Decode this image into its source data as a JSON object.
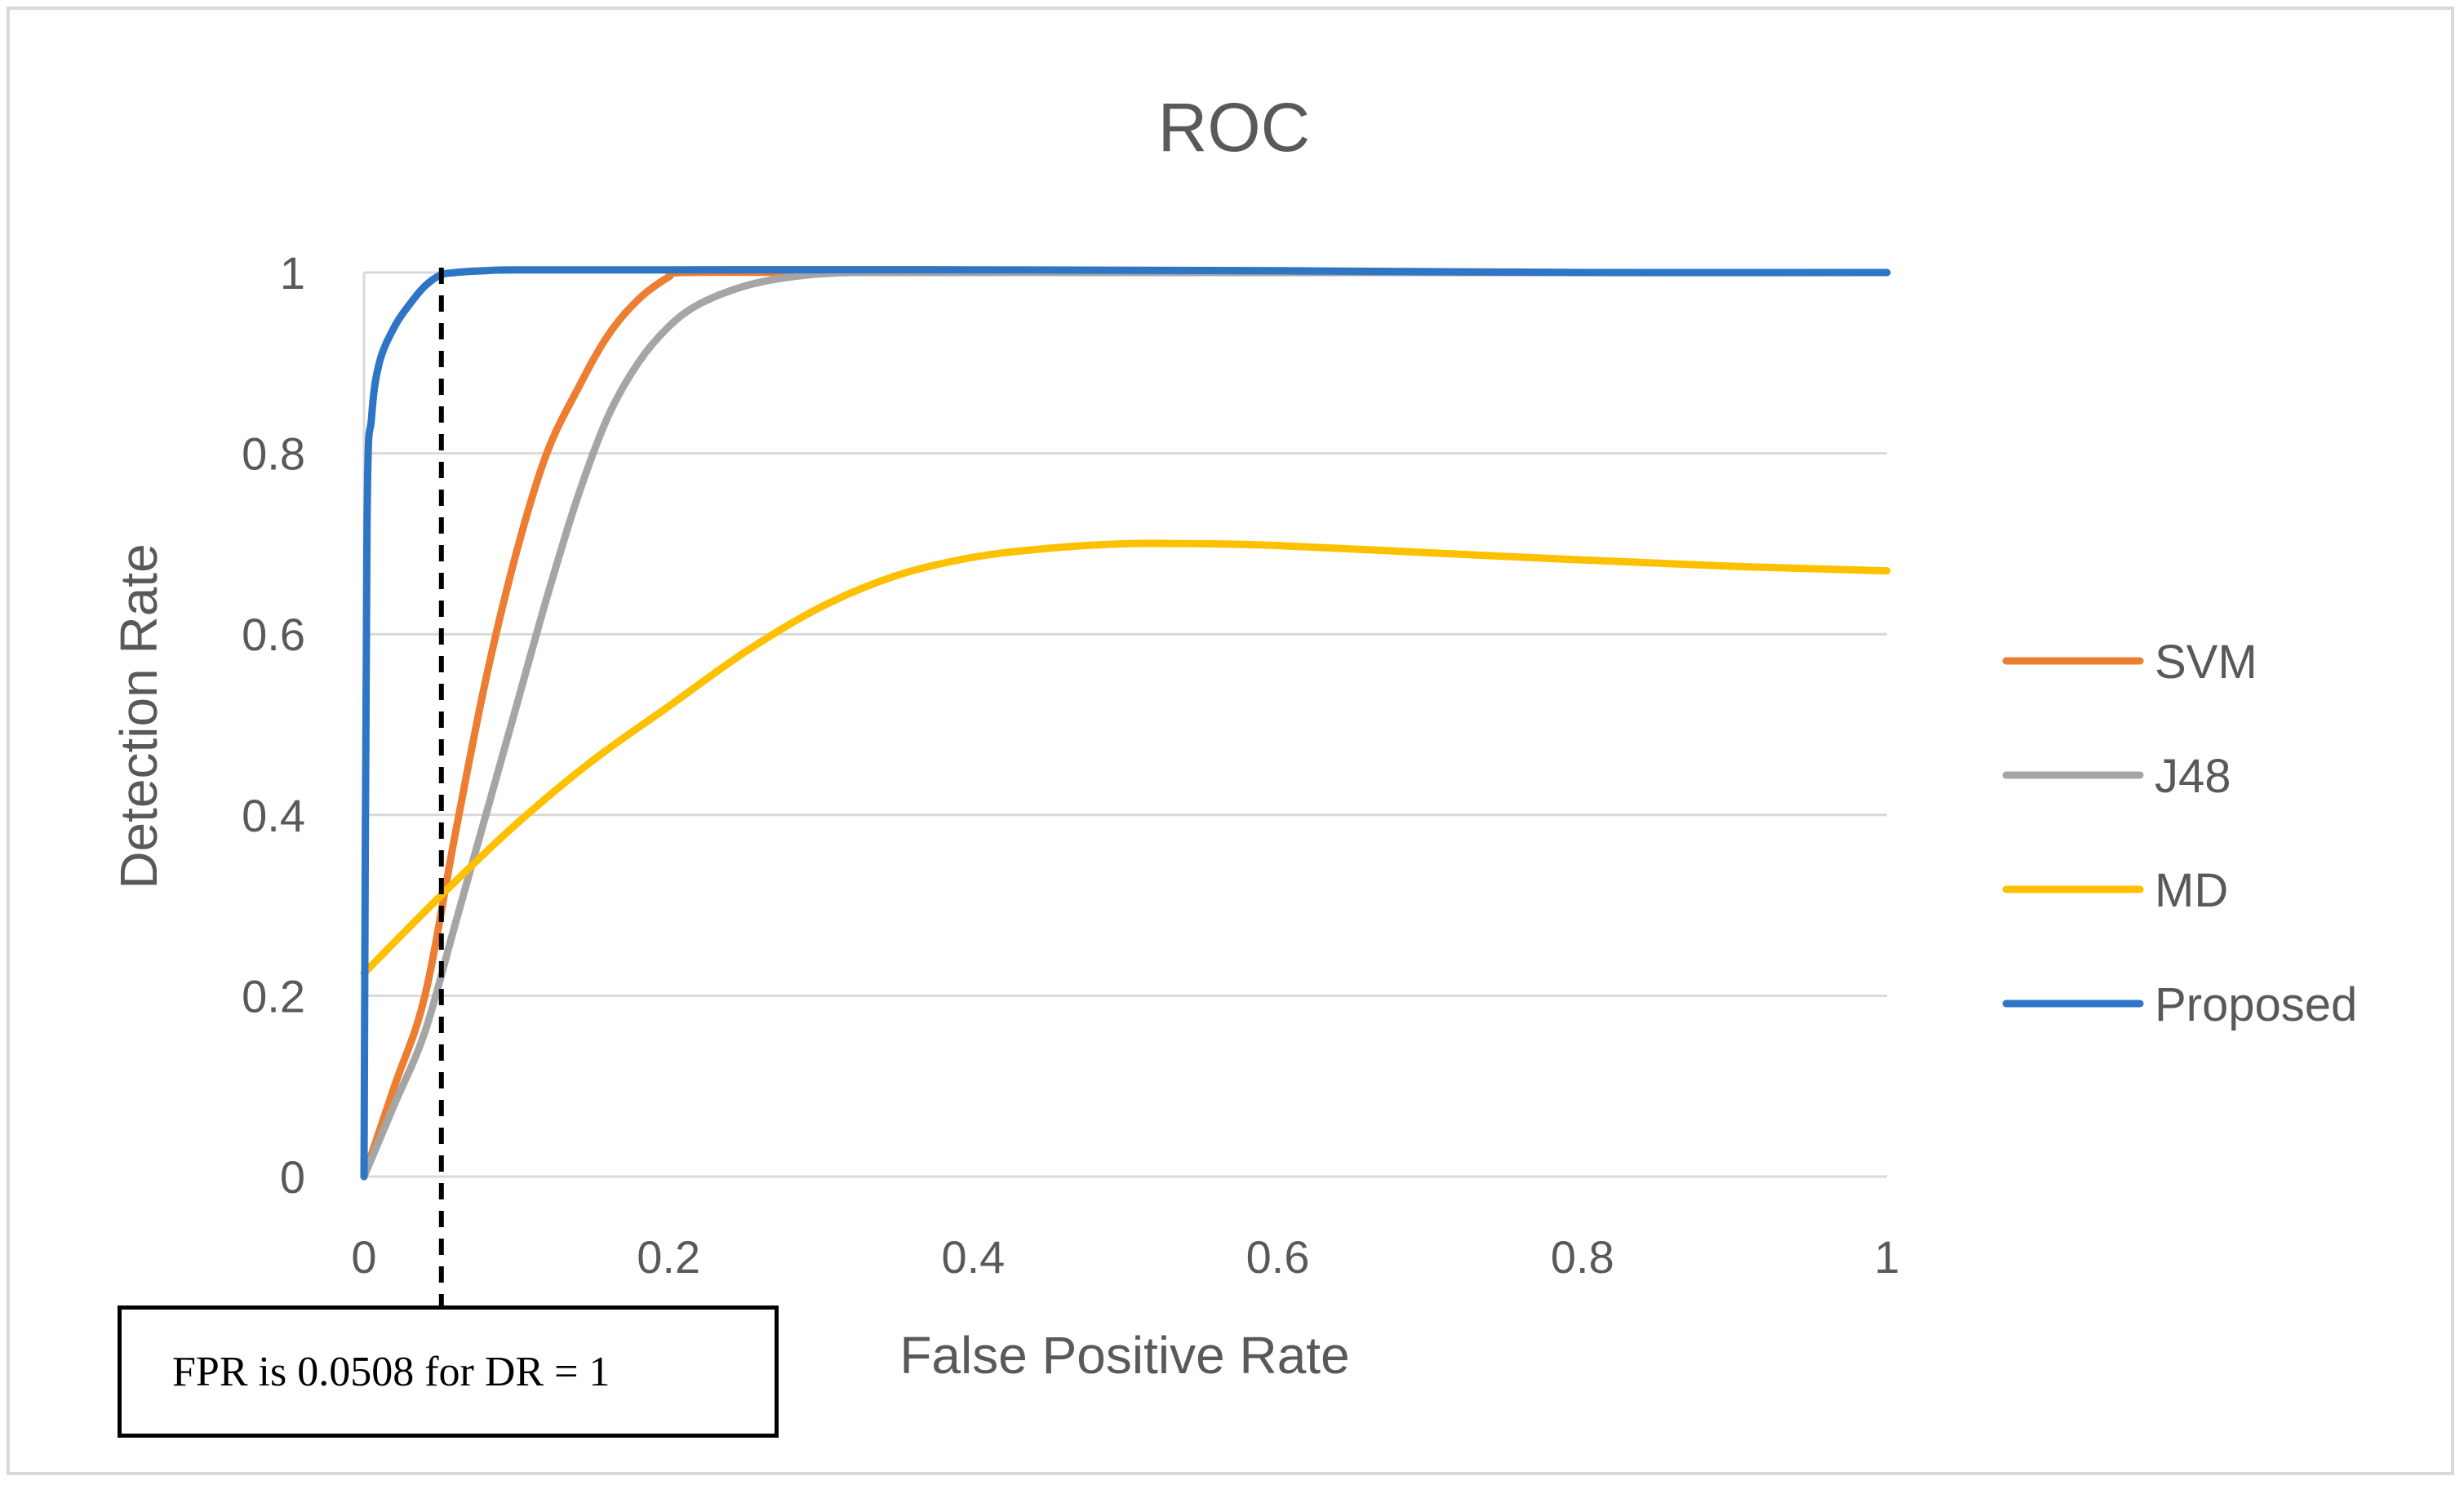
{
  "chart_data": {
    "type": "line",
    "title": "ROC",
    "xlabel": "False Positive Rate",
    "ylabel": "Detection Rate",
    "xlim": [
      0,
      1
    ],
    "ylim": [
      0,
      1
    ],
    "x_ticks": [
      "0",
      "0.2",
      "0.4",
      "0.6",
      "0.8",
      "1"
    ],
    "y_ticks": [
      "0",
      "0.2",
      "0.4",
      "0.6",
      "0.8",
      "1"
    ],
    "grid": "horizontal",
    "legend_position": "right",
    "series": [
      {
        "name": "SVM",
        "color": "#ED7D31",
        "x": [
          0,
          0.02,
          0.04,
          0.06,
          0.08,
          0.1,
          0.12,
          0.14,
          0.16,
          0.18,
          0.2,
          0.21,
          0.3,
          0.4,
          0.5,
          0.6,
          0.7,
          0.8,
          0.9,
          1.0
        ],
        "y": [
          0,
          0.1,
          0.2,
          0.38,
          0.55,
          0.69,
          0.8,
          0.87,
          0.93,
          0.97,
          0.995,
          1.0,
          1.0,
          1.0,
          1.0,
          1.0,
          1.0,
          1.0,
          1.0,
          1.0
        ]
      },
      {
        "name": "J48",
        "color": "#A5A5A5",
        "x": [
          0,
          0.02,
          0.04,
          0.06,
          0.08,
          0.1,
          0.12,
          0.14,
          0.16,
          0.18,
          0.2,
          0.22,
          0.25,
          0.28,
          0.32,
          0.4,
          0.5,
          0.6,
          0.7,
          0.8,
          0.9,
          1.0
        ],
        "y": [
          0,
          0.08,
          0.16,
          0.28,
          0.4,
          0.52,
          0.64,
          0.75,
          0.84,
          0.9,
          0.94,
          0.965,
          0.985,
          0.995,
          1.0,
          1.0,
          1.0,
          1.0,
          1.0,
          1.0,
          1.0,
          1.0
        ]
      },
      {
        "name": "MD",
        "color": "#FFC000",
        "x": [
          0,
          0.05,
          0.1,
          0.15,
          0.2,
          0.25,
          0.3,
          0.35,
          0.4,
          0.45,
          0.5,
          0.55,
          0.6,
          0.7,
          0.8,
          0.9,
          1.0
        ],
        "y": [
          0.225,
          0.31,
          0.39,
          0.46,
          0.52,
          0.58,
          0.63,
          0.665,
          0.685,
          0.695,
          0.7,
          0.7,
          0.698,
          0.69,
          0.682,
          0.675,
          0.67
        ]
      },
      {
        "name": "Proposed",
        "color": "#2E75C6",
        "x": [
          0,
          0.002,
          0.005,
          0.01,
          0.02,
          0.03,
          0.04,
          0.05,
          0.06,
          0.08,
          0.1,
          0.2,
          0.4,
          0.6,
          0.8,
          1.0
        ],
        "y": [
          0,
          0.72,
          0.84,
          0.9,
          0.94,
          0.965,
          0.985,
          0.997,
          1.0,
          1.002,
          1.003,
          1.003,
          1.003,
          1.002,
          1.0,
          1.0
        ]
      }
    ],
    "reference_line": {
      "x": 0.0508,
      "style": "dashed",
      "color": "#000000"
    },
    "annotation": "FPR is 0.0508 for DR = 1"
  }
}
